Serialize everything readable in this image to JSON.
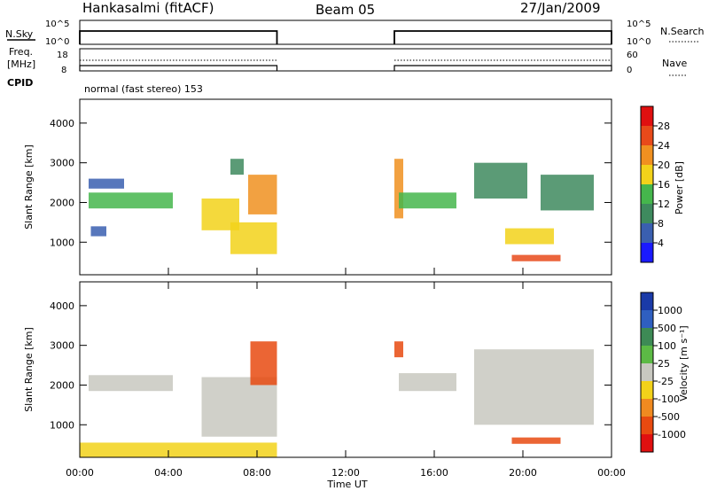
{
  "header": {
    "station": "Hankasalmi (fitACF)",
    "beam": "Beam 05",
    "date": "27/Jan/2009"
  },
  "chart_data": [
    {
      "type": "line",
      "panel": "noise",
      "left_label": "N.Sky",
      "right_label": "N.Search",
      "left_ticks": [
        "10^5",
        "10^0"
      ],
      "right_ticks": [
        "10^5",
        "10^0"
      ],
      "x_range_hours": [
        0,
        24
      ],
      "segments": [
        {
          "x": [
            0,
            8.9
          ],
          "level": "high"
        },
        {
          "x": [
            14.2,
            24
          ],
          "level": "high"
        }
      ]
    },
    {
      "type": "line",
      "panel": "frequency",
      "left_label_lines": [
        "Freq.",
        "[MHz]"
      ],
      "right_label": "Nave",
      "left_ticks": [
        "18",
        "8"
      ],
      "right_ticks": [
        "60",
        "0"
      ],
      "x_range_hours": [
        0,
        24
      ],
      "segments": [
        {
          "x": [
            0,
            8.9
          ]
        },
        {
          "x": [
            14.2,
            24
          ]
        }
      ]
    },
    {
      "type": "text",
      "panel": "cpid",
      "label": "CPID",
      "text": "normal (fast stereo) 153"
    },
    {
      "type": "heatmap",
      "panel": "power",
      "ylabel": "Slant Range [km]",
      "ylim": [
        180,
        4600
      ],
      "yticks": [
        1000,
        2000,
        3000,
        4000
      ],
      "x_range_hours": [
        0,
        24
      ],
      "colorbar_label": "Power [dB]",
      "colorbar_ticks": [
        "4",
        "8",
        "12",
        "16",
        "20",
        "24",
        "28"
      ],
      "colorbar_colors": [
        "#1a1aff",
        "#3a5fb0",
        "#3e8a5e",
        "#45b64c",
        "#f2d21a",
        "#f09020",
        "#e84a1a",
        "#e01010"
      ],
      "regions": [
        {
          "x": [
            0.4,
            4.2
          ],
          "y": [
            1850,
            2250
          ],
          "level": 3
        },
        {
          "x": [
            0.4,
            2.0
          ],
          "y": [
            2350,
            2600
          ],
          "level": 1
        },
        {
          "x": [
            0.5,
            1.2
          ],
          "y": [
            1150,
            1400
          ],
          "level": 1
        },
        {
          "x": [
            5.5,
            7.2
          ],
          "y": [
            1300,
            2100
          ],
          "level": 4
        },
        {
          "x": [
            6.8,
            8.9
          ],
          "y": [
            700,
            1500
          ],
          "level": 4
        },
        {
          "x": [
            7.6,
            8.9
          ],
          "y": [
            1700,
            2700
          ],
          "level": 5
        },
        {
          "x": [
            6.8,
            7.4
          ],
          "y": [
            2700,
            3100
          ],
          "level": 2
        },
        {
          "x": [
            14.2,
            14.6
          ],
          "y": [
            1600,
            3100
          ],
          "level": 5
        },
        {
          "x": [
            14.4,
            17.0
          ],
          "y": [
            1850,
            2250
          ],
          "level": 3
        },
        {
          "x": [
            17.8,
            20.2
          ],
          "y": [
            2100,
            3000
          ],
          "level": 2
        },
        {
          "x": [
            19.2,
            21.4
          ],
          "y": [
            950,
            1350
          ],
          "level": 4
        },
        {
          "x": [
            19.5,
            21.7
          ],
          "y": [
            520,
            680
          ],
          "level": 6
        },
        {
          "x": [
            20.8,
            23.2
          ],
          "y": [
            1800,
            2700
          ],
          "level": 2
        }
      ]
    },
    {
      "type": "heatmap",
      "panel": "velocity",
      "ylabel": "Slant Range [km]",
      "xlabel": "Time UT",
      "ylim": [
        180,
        4600
      ],
      "yticks": [
        1000,
        2000,
        3000,
        4000
      ],
      "xticks": [
        "00:00",
        "04:00",
        "08:00",
        "12:00",
        "16:00",
        "20:00",
        "00:00"
      ],
      "x_range_hours": [
        0,
        24
      ],
      "colorbar_label": "Velocity [m s⁻¹]",
      "colorbar_ticks": [
        "1000",
        "500",
        "100",
        "25",
        "-25",
        "-100",
        "-500",
        "-1000"
      ],
      "colorbar_colors": [
        "#1a3aa8",
        "#2f5fc0",
        "#3d8a55",
        "#5cba45",
        "#c8c8c0",
        "#f2d21a",
        "#f08a20",
        "#e84a10",
        "#e01010"
      ],
      "regions": [
        {
          "x": [
            0.4,
            4.2
          ],
          "y": [
            1850,
            2250
          ],
          "level": 4
        },
        {
          "x": [
            5.5,
            8.9
          ],
          "y": [
            700,
            2200
          ],
          "level": 4
        },
        {
          "x": [
            7.7,
            8.9
          ],
          "y": [
            2000,
            3100
          ],
          "level": 7
        },
        {
          "x": [
            14.2,
            14.6
          ],
          "y": [
            2700,
            3100
          ],
          "level": 7
        },
        {
          "x": [
            14.4,
            17.0
          ],
          "y": [
            1850,
            2300
          ],
          "level": 4
        },
        {
          "x": [
            17.8,
            23.2
          ],
          "y": [
            1000,
            2900
          ],
          "level": 4
        },
        {
          "x": [
            19.5,
            21.7
          ],
          "y": [
            520,
            680
          ],
          "level": 7
        },
        {
          "x": [
            0,
            8.9
          ],
          "y": [
            180,
            550
          ],
          "level": 5
        }
      ]
    }
  ]
}
